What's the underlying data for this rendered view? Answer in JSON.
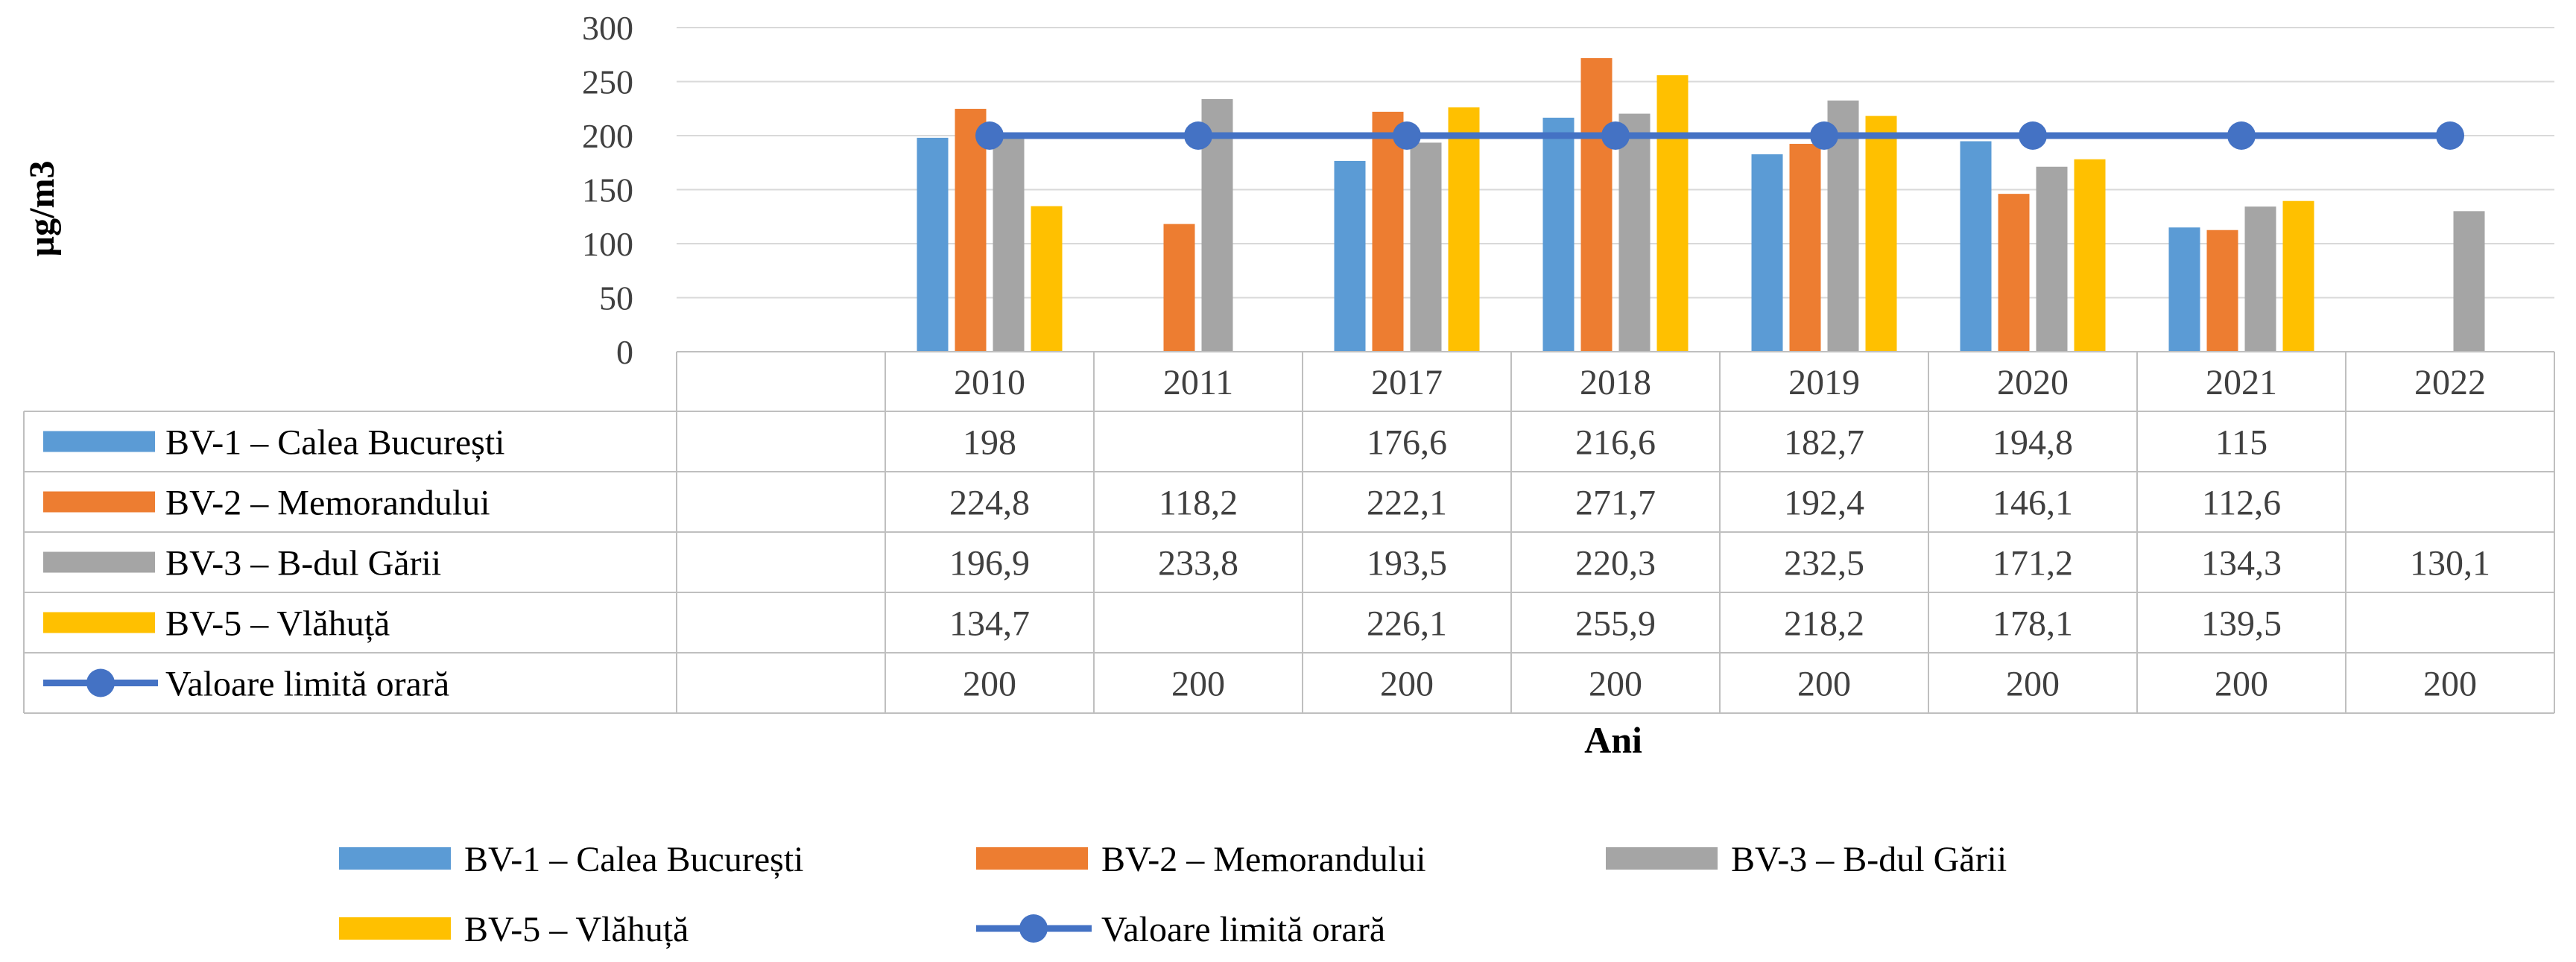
{
  "chart_data": {
    "type": "bar",
    "ylabel": "µg/m3",
    "xlabel": "Ani",
    "ylim": [
      0,
      300
    ],
    "yticks": [
      "0",
      "50",
      "100",
      "150",
      "200",
      "250",
      "300"
    ],
    "categories": [
      "2010",
      "2011",
      "2017",
      "2018",
      "2019",
      "2020",
      "2021",
      "2022"
    ],
    "series": [
      {
        "name": "BV-1 – Calea București",
        "kind": "bar",
        "color": "#5B9BD5",
        "values": [
          198,
          null,
          176.6,
          216.6,
          182.7,
          194.8,
          115,
          null
        ],
        "labels": [
          "198",
          "",
          "176,6",
          "216,6",
          "182,7",
          "194,8",
          "115",
          ""
        ]
      },
      {
        "name": "BV-2 – Memorandului",
        "kind": "bar",
        "color": "#ED7D31",
        "values": [
          224.8,
          118.2,
          222.1,
          271.7,
          192.4,
          146.1,
          112.6,
          null
        ],
        "labels": [
          "224,8",
          "118,2",
          "222,1",
          "271,7",
          "192,4",
          "146,1",
          "112,6",
          ""
        ]
      },
      {
        "name": "BV-3 – B-dul Gării",
        "kind": "bar",
        "color": "#A5A5A5",
        "values": [
          196.9,
          233.8,
          193.5,
          220.3,
          232.5,
          171.2,
          134.3,
          130.1
        ],
        "labels": [
          "196,9",
          "233,8",
          "193,5",
          "220,3",
          "232,5",
          "171,2",
          "134,3",
          "130,1"
        ]
      },
      {
        "name": "BV-5 – Vlăhuță",
        "kind": "bar",
        "color": "#FFC000",
        "values": [
          134.7,
          null,
          226.1,
          255.9,
          218.2,
          178.1,
          139.5,
          null
        ],
        "labels": [
          "134,7",
          "",
          "226,1",
          "255,9",
          "218,2",
          "178,1",
          "139,5",
          ""
        ]
      },
      {
        "name": "Valoare limită orară",
        "kind": "line",
        "color": "#4472C4",
        "values": [
          200,
          200,
          200,
          200,
          200,
          200,
          200,
          200
        ],
        "labels": [
          "200",
          "200",
          "200",
          "200",
          "200",
          "200",
          "200",
          "200"
        ]
      }
    ],
    "legend": "bottom"
  }
}
